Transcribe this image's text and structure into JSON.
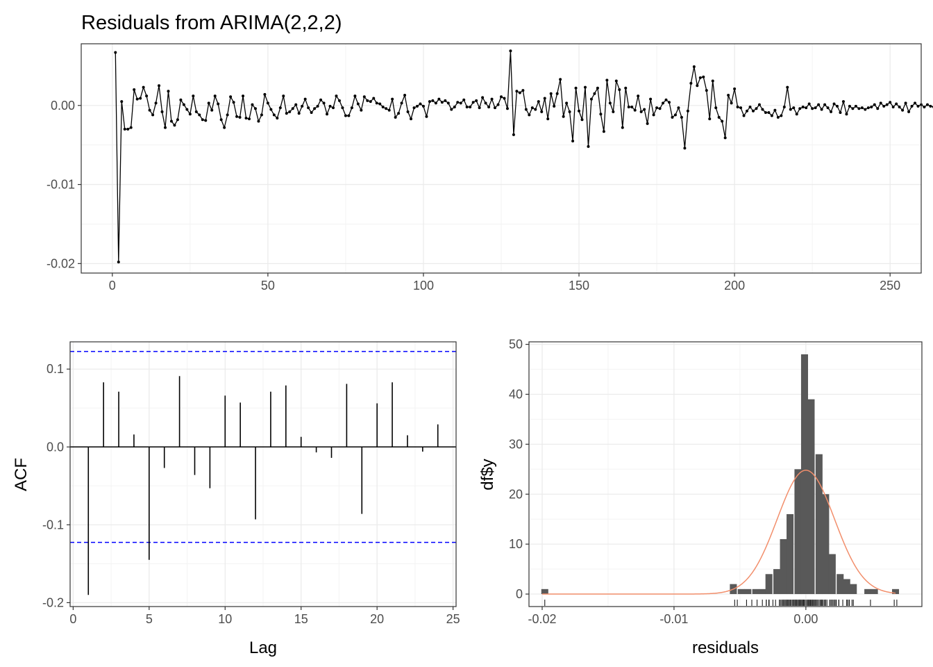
{
  "colors": {
    "grid_major": "#ebebeb",
    "grid_minor": "#f3f3f3",
    "panel_border": "#333333",
    "ink": "#000000",
    "ci_line": "#0000ff",
    "histogram_fill": "#595959",
    "density_curve": "#f28e6b",
    "tick_text": "#4d4d4d"
  },
  "chart_data": [
    {
      "type": "line",
      "title": "Residuals from ARIMA(2,2,2)",
      "xlabel": "",
      "ylabel": "",
      "xlim": [
        -10,
        260
      ],
      "ylim": [
        -0.0212,
        0.0078
      ],
      "x_ticks": [
        0,
        50,
        100,
        150,
        200,
        250
      ],
      "x_tick_labels": [
        "0",
        "50",
        "100",
        "150",
        "200",
        "250"
      ],
      "y_ticks": [
        -0.02,
        -0.01,
        0.0
      ],
      "y_tick_labels": [
        "-0.02",
        "-0.01",
        "0.00"
      ],
      "grid": true,
      "markers": true,
      "x_start": 1,
      "y": [
        0.0067,
        -0.0198,
        0.0005,
        -0.003,
        -0.003,
        -0.0028,
        0.002,
        0.0008,
        0.0009,
        0.0023,
        0.0012,
        -0.0006,
        -0.0012,
        0.0003,
        0.0025,
        -0.0008,
        -0.0028,
        0.0018,
        -0.002,
        -0.0025,
        -0.0018,
        0.0007,
        0.0001,
        -0.0005,
        -0.0011,
        0.0012,
        -0.0008,
        -0.0012,
        -0.0018,
        -0.0019,
        0.0003,
        -0.0006,
        0.0012,
        0.0002,
        -0.0018,
        -0.0028,
        -0.0012,
        0.0011,
        0.0004,
        -0.0014,
        -0.0015,
        0.0012,
        -0.0016,
        -0.0017,
        0.0001,
        -0.0004,
        -0.002,
        -0.0012,
        0.0014,
        0.0003,
        -0.0005,
        -0.0012,
        -0.0016,
        -0.0003,
        0.0012,
        -0.001,
        -0.0008,
        -0.0004,
        0.0001,
        -0.001,
        -0.0001,
        0.0008,
        -0.0003,
        -0.0009,
        -0.0004,
        -0.0001,
        0.0007,
        0.0003,
        -0.0011,
        -0.0001,
        -0.0003,
        0.0012,
        0.0006,
        -0.0003,
        -0.0013,
        -0.0013,
        -0.0003,
        0.0012,
        0.0002,
        -0.0006,
        0.0011,
        0.0006,
        0.0005,
        0.0009,
        0.0003,
        0.0002,
        -0.0002,
        -0.0004,
        -0.0006,
        0.0008,
        -0.0015,
        -0.001,
        0.0003,
        0.0013,
        -0.0008,
        -0.0017,
        -0.0003,
        -0.0001,
        0.0002,
        -0.0001,
        -0.0014,
        0.0005,
        0.0006,
        0.0003,
        0.0008,
        0.0004,
        0.0006,
        0.0003,
        -0.0005,
        -0.0002,
        0.0004,
        0.0003,
        0.0007,
        -0.0002,
        -0.0002,
        0.0004,
        0.0006,
        -0.0003,
        0.001,
        0.0003,
        -0.0002,
        0.0008,
        -0.0003,
        0.0001,
        0.0011,
        0.0009,
        -0.0004,
        0.0069,
        -0.0037,
        0.0018,
        0.0016,
        0.0019,
        -0.0005,
        -0.0012,
        -0.0003,
        -0.0005,
        0.0005,
        -0.0008,
        0.0009,
        -0.0017,
        0.0015,
        -0.0001,
        0.0015,
        0.0033,
        -0.0014,
        0.0003,
        -0.0008,
        -0.0045,
        0.0022,
        -0.0007,
        -0.0018,
        0.0023,
        -0.0052,
        0.0008,
        0.0015,
        0.0022,
        -0.0011,
        -0.0033,
        0.0032,
        0.0003,
        -0.0008,
        0.0031,
        0.002,
        -0.0028,
        0.0022,
        -0.0002,
        -0.0002,
        -0.0006,
        0.0012,
        -0.0008,
        -0.0005,
        -0.0023,
        0.0008,
        -0.0012,
        -0.0003,
        -0.0004,
        0.0003,
        0.0007,
        0.0004,
        -0.0015,
        -0.0012,
        -0.0003,
        -0.0015,
        -0.0054,
        -0.0007,
        0.0028,
        0.0049,
        0.0025,
        0.0035,
        0.0036,
        0.0019,
        -0.0017,
        0.0031,
        -0.0003,
        -0.0015,
        -0.002,
        -0.0041,
        0.0013,
        0.0003,
        0.0021,
        -0.0002,
        -0.0003,
        -0.0013,
        -0.0007,
        -0.0002,
        -0.0007,
        -0.0004,
        0.0001,
        -0.0005,
        -0.0009,
        -0.0009,
        -0.0013,
        -0.0006,
        -0.0015,
        -0.0013,
        -0.0002,
        0.0023,
        -0.0005,
        -0.0003,
        -0.0011,
        -0.0004,
        -0.0002,
        -0.0003,
        0.0002,
        -0.0004,
        -0.0003,
        0.0001,
        -0.0005,
        0.0001,
        -0.0003,
        -0.0008,
        0.0002,
        -0.0001,
        -0.0009,
        0.0005,
        -0.0011,
        -0.0001,
        -0.0004,
        -0.0001,
        -0.0004,
        -0.0003,
        -0.0005,
        -0.0003,
        -0.0002,
        0.0001,
        -0.0004,
        0.0003,
        -0.0001,
        0.0001,
        0.0004,
        -0.0002,
        0.0002,
        -0.0002,
        -0.0006,
        0.0003,
        -0.0008,
        -0.0001,
        0.0003,
        -0.0001,
        0.0001,
        -0.0002,
        0.0001,
        -0.0001,
        -0.0002,
        0.0001,
        0.0,
        -0.0001,
        0.0001
      ]
    },
    {
      "type": "bar",
      "subtype": "acf",
      "title": "",
      "xlabel": "Lag",
      "ylabel": "ACF",
      "xlim": [
        -0.2,
        25.2
      ],
      "ylim": [
        -0.205,
        0.135
      ],
      "x_ticks": [
        0,
        5,
        10,
        15,
        20,
        25
      ],
      "x_tick_labels": [
        "0",
        "5",
        "10",
        "15",
        "20",
        "25"
      ],
      "y_ticks": [
        -0.2,
        -0.1,
        0.0,
        0.1
      ],
      "y_tick_labels": [
        "-0.2",
        "-0.1",
        "0.0",
        "0.1"
      ],
      "grid": true,
      "lags": [
        1,
        2,
        3,
        4,
        5,
        6,
        7,
        8,
        9,
        10,
        11,
        12,
        13,
        14,
        15,
        16,
        17,
        18,
        19,
        20,
        21,
        22,
        23,
        24
      ],
      "values": [
        -0.19,
        0.083,
        0.071,
        0.016,
        -0.145,
        -0.027,
        0.091,
        -0.036,
        -0.053,
        0.066,
        0.057,
        -0.093,
        0.071,
        0.079,
        0.013,
        -0.007,
        -0.014,
        0.081,
        -0.086,
        0.056,
        0.083,
        0.015,
        -0.006,
        0.029
      ],
      "ci_bounds": [
        -0.1226,
        0.1226
      ]
    },
    {
      "type": "bar",
      "subtype": "histogram",
      "title": "",
      "xlabel": "residuals",
      "ylabel": "df$y",
      "xlim": [
        -0.021,
        0.0088
      ],
      "ylim": [
        -2.5,
        50.5
      ],
      "x_ticks": [
        -0.02,
        -0.01,
        0.0
      ],
      "x_tick_labels": [
        "-0.02",
        "-0.01",
        "0.00"
      ],
      "y_ticks": [
        0,
        10,
        20,
        30,
        40,
        50
      ],
      "y_tick_labels": [
        "0",
        "10",
        "20",
        "30",
        "40",
        "50"
      ],
      "grid": true,
      "bin_width": 0.000529,
      "bins": [
        {
          "x": -0.0198,
          "count": 1
        },
        {
          "x": -0.0055,
          "count": 2
        },
        {
          "x": -0.0049,
          "count": 1
        },
        {
          "x": -0.0044,
          "count": 1
        },
        {
          "x": -0.0038,
          "count": 1
        },
        {
          "x": -0.0033,
          "count": 1
        },
        {
          "x": -0.0028,
          "count": 4
        },
        {
          "x": -0.0022,
          "count": 5
        },
        {
          "x": -0.0017,
          "count": 11
        },
        {
          "x": -0.0012,
          "count": 16
        },
        {
          "x": -0.0006,
          "count": 25
        },
        {
          "x": -0.0001,
          "count": 48
        },
        {
          "x": 0.0004,
          "count": 39
        },
        {
          "x": 0.001,
          "count": 28
        },
        {
          "x": 0.0015,
          "count": 20
        },
        {
          "x": 0.002,
          "count": 8
        },
        {
          "x": 0.0026,
          "count": 4
        },
        {
          "x": 0.0031,
          "count": 3
        },
        {
          "x": 0.0036,
          "count": 2
        },
        {
          "x": 0.0047,
          "count": 1
        },
        {
          "x": 0.0052,
          "count": 1
        },
        {
          "x": 0.0068,
          "count": 1
        }
      ],
      "density_curve": {
        "mean": 0.0,
        "sd": 0.00217,
        "n": 255
      },
      "rug": true
    }
  ]
}
